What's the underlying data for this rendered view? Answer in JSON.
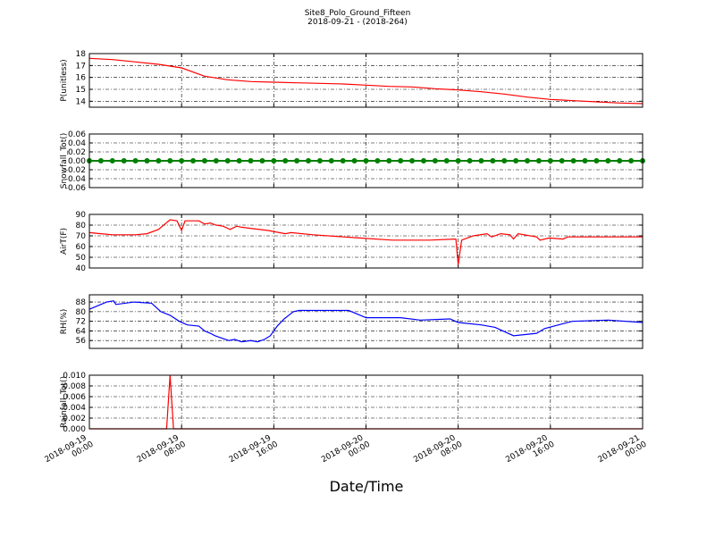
{
  "title": "Site8_Polo_Ground_Fifteen",
  "subtitle": "2018-09-21 - (2018-264)",
  "xlabel": "Date/Time",
  "chart_data": [
    {
      "type": "line",
      "ylabel": "P(unitless)",
      "xlim": [
        0,
        48
      ],
      "xticks": [
        0,
        8,
        16,
        24,
        32,
        40,
        48
      ],
      "ylim": [
        13.5,
        18
      ],
      "yticks": [
        14,
        15,
        16,
        17,
        18
      ],
      "grid": true,
      "x": [
        0,
        2,
        4,
        6,
        8,
        10,
        12,
        14,
        16,
        18,
        20,
        22,
        24,
        26,
        28,
        30,
        32,
        34,
        36,
        38,
        40,
        42,
        44,
        46,
        48
      ],
      "series": [
        {
          "color": "#ff0000",
          "values": [
            17.6,
            17.5,
            17.3,
            17.1,
            16.8,
            16.1,
            15.8,
            15.65,
            15.6,
            15.55,
            15.5,
            15.45,
            15.35,
            15.25,
            15.2,
            15.05,
            14.95,
            14.8,
            14.6,
            14.35,
            14.15,
            14.05,
            13.95,
            13.85,
            13.8
          ]
        }
      ]
    },
    {
      "type": "line",
      "ylabel": "Snowfall_Tot()",
      "xlim": [
        0,
        48
      ],
      "xticks": [
        0,
        8,
        16,
        24,
        32,
        40,
        48
      ],
      "ylim": [
        -0.06,
        0.06
      ],
      "yticks": [
        -0.06,
        -0.04,
        -0.02,
        {
          "value": 0,
          "label": "0.00"
        },
        0.02,
        0.04,
        0.06
      ],
      "grid": true,
      "marker": true,
      "x": [
        0,
        1,
        2,
        3,
        4,
        5,
        6,
        7,
        8,
        9,
        10,
        11,
        12,
        13,
        14,
        15,
        16,
        17,
        18,
        19,
        20,
        21,
        22,
        23,
        24,
        25,
        26,
        27,
        28,
        29,
        30,
        31,
        32,
        33,
        34,
        35,
        36,
        37,
        38,
        39,
        40,
        41,
        42,
        43,
        44,
        45,
        46,
        47,
        48
      ],
      "series": [
        {
          "color": "#008000",
          "values": [
            0,
            0,
            0,
            0,
            0,
            0,
            0,
            0,
            0,
            0,
            0,
            0,
            0,
            0,
            0,
            0,
            0,
            0,
            0,
            0,
            0,
            0,
            0,
            0,
            0,
            0,
            0,
            0,
            0,
            0,
            0,
            0,
            0,
            0,
            0,
            0,
            0,
            0,
            0,
            0,
            0,
            0,
            0,
            0,
            0,
            0,
            0,
            0,
            0
          ]
        }
      ]
    },
    {
      "type": "line",
      "ylabel": "AirT(F)",
      "xlim": [
        0,
        48
      ],
      "xticks": [
        0,
        8,
        16,
        24,
        32,
        40,
        48
      ],
      "ylim": [
        40,
        90
      ],
      "yticks": [
        40,
        50,
        60,
        70,
        80,
        90
      ],
      "grid": true,
      "x": [
        0,
        1,
        2,
        3,
        4,
        5,
        6,
        7,
        7.6,
        8,
        8.3,
        9.5,
        10,
        10.5,
        11,
        11.6,
        12.2,
        12.8,
        13.2,
        15.5,
        17,
        17.5,
        19.4,
        23.4,
        26.3,
        29.5,
        31.8,
        32,
        32.3,
        33.3,
        34.5,
        34.9,
        35.7,
        36.5,
        36.8,
        37.2,
        38.8,
        39.1,
        39.9,
        41.1,
        41.5,
        48
      ],
      "series": [
        {
          "color": "#ff0000",
          "values": [
            73,
            72,
            71,
            71,
            71,
            72,
            76,
            85,
            84,
            75,
            84,
            84,
            81,
            82,
            80,
            79,
            76,
            79,
            78,
            75,
            72,
            73,
            71,
            68,
            66,
            66,
            67,
            43,
            66,
            70,
            72,
            69,
            72,
            71,
            67,
            72,
            69,
            66,
            68,
            67,
            69,
            69
          ]
        }
      ]
    },
    {
      "type": "line",
      "ylabel": "RH(%)",
      "xlim": [
        0,
        48
      ],
      "xticks": [
        0,
        8,
        16,
        24,
        32,
        40,
        48
      ],
      "ylim": [
        49.5,
        94
      ],
      "yticks": [
        56,
        64,
        72,
        80,
        88
      ],
      "grid": true,
      "x": [
        0,
        1.5,
        2.1,
        2.3,
        3.9,
        5.4,
        6.2,
        7,
        7.8,
        8.5,
        9.5,
        10,
        10.5,
        10.9,
        11.5,
        12.1,
        12.6,
        13.2,
        14,
        14.6,
        15.2,
        15.7,
        16.3,
        16.9,
        17.3,
        17.7,
        18.2,
        22.5,
        24,
        27,
        28.7,
        31.3,
        32,
        34,
        35.2,
        36.8,
        38.8,
        39.5,
        40.3,
        41.9,
        45,
        48
      ],
      "series": [
        {
          "color": "#0000ff",
          "values": [
            82,
            88,
            89,
            86,
            88,
            87,
            80,
            77,
            72,
            69,
            68,
            64,
            62,
            60,
            58,
            56,
            57,
            55,
            56,
            55,
            57,
            60,
            68,
            74,
            77,
            80,
            81,
            81,
            75,
            75,
            73,
            74,
            71,
            69,
            67,
            60,
            62,
            66,
            68,
            72,
            73,
            71
          ]
        }
      ]
    },
    {
      "type": "line",
      "ylabel": "Rainfall_Tot()",
      "xlim": [
        0,
        48
      ],
      "xticks": [
        {
          "value": 0,
          "label": [
            "2018-09-19",
            "00:00"
          ]
        },
        {
          "value": 8,
          "label": [
            "2018-09-19",
            "08:00"
          ]
        },
        {
          "value": 16,
          "label": [
            "2018-09-19",
            "16:00"
          ]
        },
        {
          "value": 24,
          "label": [
            "2018-09-20",
            "00:00"
          ]
        },
        {
          "value": 32,
          "label": [
            "2018-09-20",
            "08:00"
          ]
        },
        {
          "value": 40,
          "label": [
            "2018-09-20",
            "16:00"
          ]
        },
        {
          "value": 48,
          "label": [
            "2018-09-21",
            "00:00"
          ]
        }
      ],
      "ylim": [
        0,
        0.01
      ],
      "yticks": [
        {
          "value": 0,
          "label": "0.000"
        },
        0.002,
        0.004,
        0.006,
        0.008,
        {
          "value": 0.01,
          "label": "0.010"
        }
      ],
      "grid": true,
      "x": [
        0,
        6.7,
        7,
        7.3,
        48
      ],
      "series": [
        {
          "color": "#ff0000",
          "values": [
            0,
            0,
            0.01,
            0,
            0
          ]
        }
      ]
    }
  ]
}
